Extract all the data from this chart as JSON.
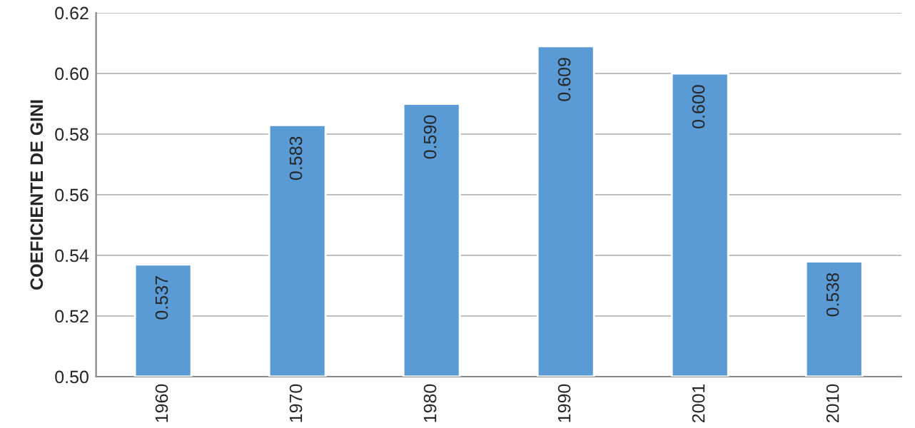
{
  "chart_data": {
    "type": "bar",
    "ylabel": "COEFICIENTE DE GINI",
    "categories": [
      "1960",
      "1970",
      "1980",
      "1990",
      "2001",
      "2010"
    ],
    "values": [
      0.537,
      0.583,
      0.59,
      0.609,
      0.6,
      0.538
    ],
    "value_labels": [
      "0.537",
      "0.583",
      "0.590",
      "0.609",
      "0.600",
      "0.538"
    ],
    "color": "#5b9bd5",
    "ylim": [
      0.5,
      0.62
    ],
    "yticks": [
      {
        "value": 0.5,
        "label": "0.50"
      },
      {
        "value": 0.52,
        "label": "0.52"
      },
      {
        "value": 0.54,
        "label": "0.54"
      },
      {
        "value": 0.56,
        "label": "0.56"
      },
      {
        "value": 0.58,
        "label": "0.58"
      },
      {
        "value": 0.6,
        "label": "0.60"
      },
      {
        "value": 0.62,
        "label": "0.62"
      }
    ],
    "grid": "y"
  }
}
